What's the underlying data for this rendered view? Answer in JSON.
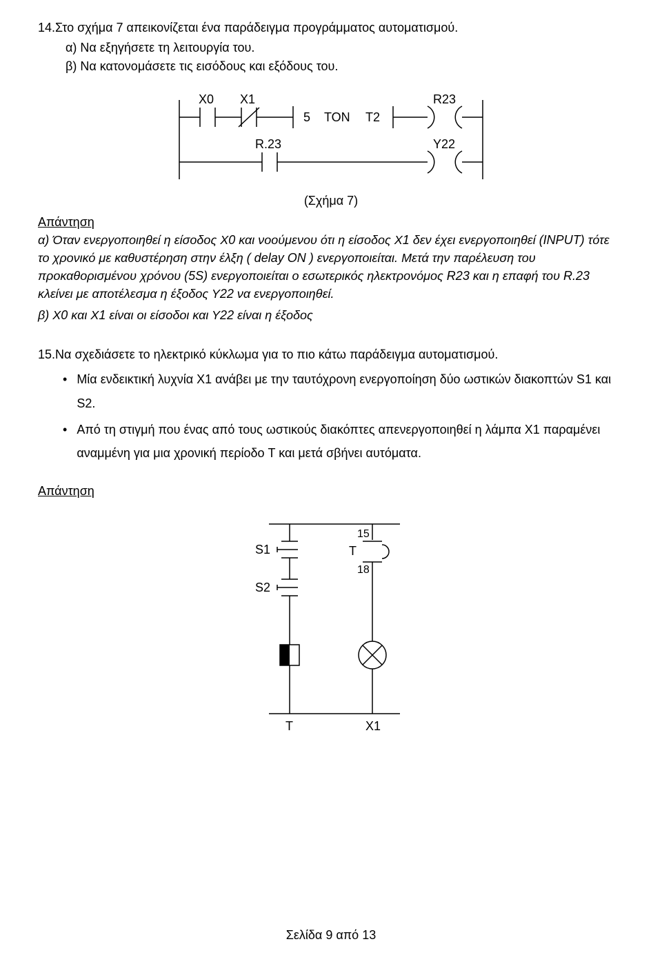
{
  "q14": {
    "number": "14.",
    "text": "Στο σχήμα 7 απεικονίζεται ένα παράδειγμα προγράμματος αυτοματισμού.",
    "sub_a": "α) Να εξηγήσετε τη λειτουργία του.",
    "sub_b": "β) Να κατονομάσετε τις εισόδους και εξόδους του.",
    "caption": "(Σχήμα 7)",
    "answer_title": "Απάντηση",
    "answer_a": "α) Όταν ενεργοποιηθεί η είσοδος Χ0 και νοούμενου ότι η είσοδος Χ1 δεν έχει ενεργοποιηθεί (INPUT) τότε το χρονικό με καθυστέρηση στην έλξη ( delay ON ) ενεργοποιείται. Μετά την παρέλευση του προκαθορισμένου χρόνου (5S) ενεργοποιείται ο εσωτερικός ηλεκτρονόμος R23 και η επαφή του R.23 κλείνει με αποτέλεσμα η έξοδος Υ22 να ενεργοποιηθεί.",
    "answer_b": "β) Χ0 και Χ1 είναι οι είσοδοι και Υ22 είναι η έξοδος"
  },
  "q15": {
    "number": "15.",
    "text": "Να σχεδιάσετε το ηλεκτρικό κύκλωμα για το πιο κάτω παράδειγμα αυτοματισμού.",
    "bullet1": "Μία ενδεικτική λυχνία Χ1 ανάβει με την  ταυτόχρονη ενεργοποίηση δύο ωστικών διακοπτών S1 και S2.",
    "bullet2": "Από τη στιγμή που ένας από τους ωστικούς διακόπτες απενεργοποιηθεί η λάμπα X1 παραμένει αναμμένη για μια χρονική περίοδο T και μετά σβήνει αυτόματα.",
    "answer_title": "Απάντηση"
  },
  "ladder": {
    "type": "ladder-diagram",
    "stroke": "#000000",
    "stroke_width": 1.5,
    "font_size": 18,
    "rung1": {
      "contacts": [
        {
          "label": "X0",
          "type": "NO"
        },
        {
          "label": "X1",
          "type": "NC"
        }
      ],
      "block_text1": "5",
      "block_text2": "TON",
      "block_text3": "T2",
      "coil_label": "R23"
    },
    "rung2": {
      "contact_label": "R.23",
      "coil_label": "Y22"
    }
  },
  "circuit": {
    "type": "electrical-schematic",
    "stroke": "#000000",
    "stroke_width": 1.5,
    "font_size": 18,
    "labels": {
      "s1": "S1",
      "s2": "S2",
      "t_top": "15",
      "t_mid": "T",
      "t_bot": "18",
      "relay": "T",
      "lamp": "X1"
    }
  },
  "footer": "Σελίδα 9 από 13"
}
